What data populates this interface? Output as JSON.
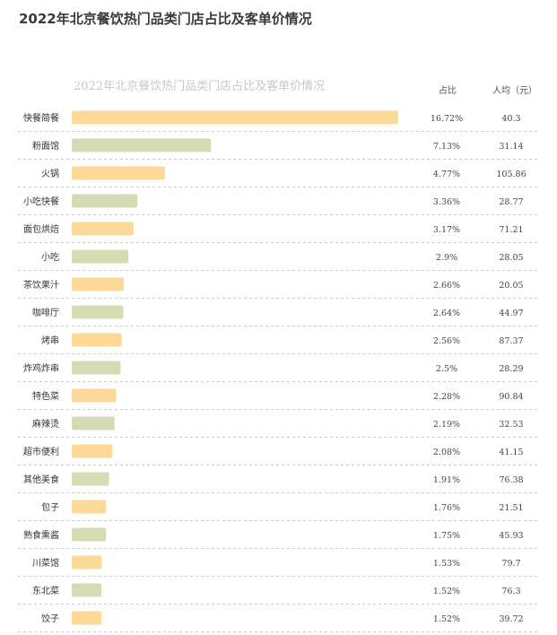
{
  "page_title": "2022年北京餐饮热门品类门店占比及客单价情况",
  "chart_data": {
    "type": "bar",
    "orientation": "horizontal",
    "title": "2022年北京餐饮热门品类门店占比及客单价情况",
    "columns": {
      "share": "占比",
      "price": "人均（元）"
    },
    "categories": [
      "快餐简餐",
      "粉面馆",
      "火锅",
      "小吃快餐",
      "面包烘焙",
      "小吃",
      "茶饮果汁",
      "咖啡厅",
      "烤串",
      "炸鸡炸串",
      "特色菜",
      "麻辣烫",
      "超市便利",
      "其他美食",
      "包子",
      "熟食熏酱",
      "川菜馆",
      "东北菜",
      "饺子"
    ],
    "values": [
      16.72,
      7.13,
      4.77,
      3.36,
      3.17,
      2.9,
      2.66,
      2.64,
      2.56,
      2.5,
      2.28,
      2.19,
      2.08,
      1.91,
      1.76,
      1.75,
      1.53,
      1.52,
      1.52
    ],
    "share_labels": [
      "16.72%",
      "7.13%",
      "4.77%",
      "3.36%",
      "3.17%",
      "2.9%",
      "2.66%",
      "2.64%",
      "2.56%",
      "2.5%",
      "2.28%",
      "2.19%",
      "2.08%",
      "1.91%",
      "1.76%",
      "1.75%",
      "1.53%",
      "1.52%",
      "1.52%"
    ],
    "price_labels": [
      "40.3",
      "31.14",
      "105.86",
      "28.77",
      "71.21",
      "28.05",
      "20.05",
      "44.97",
      "87.37",
      "28.29",
      "90.84",
      "32.53",
      "41.15",
      "76.38",
      "21.51",
      "45.93",
      "79.7",
      "76.3",
      "39.72"
    ],
    "colors": {
      "odd": "#fdd998",
      "even": "#d5dcb4",
      "separator": "#cccccc"
    },
    "grid": false
  }
}
